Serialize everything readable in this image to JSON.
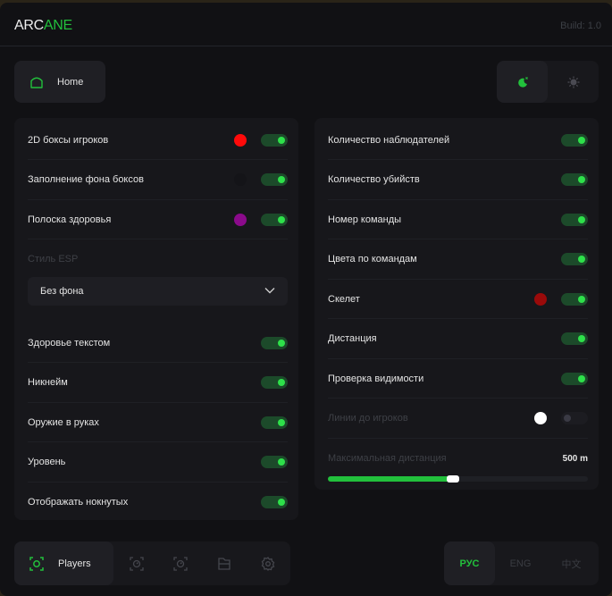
{
  "header": {
    "logo_a": "ARC",
    "logo_b": "ANE",
    "build": "Build: 1.0"
  },
  "top": {
    "home_label": "Home",
    "theme_dark_icon": "moon-icon",
    "theme_light_icon": "sun-icon"
  },
  "left": {
    "rows": [
      {
        "label": "2D боксы игроков",
        "color": "#ff0a0a",
        "on": true
      },
      {
        "label": "Заполнение фона боксов",
        "color": "#141418",
        "on": true
      },
      {
        "label": "Полоска здоровья",
        "color": "#8b0a8b",
        "on": true
      }
    ],
    "style_label": "Стиль ESP",
    "style_value": "Без фона",
    "rows2": [
      {
        "label": "Здоровье текстом",
        "on": true
      },
      {
        "label": "Никнейм",
        "on": true
      },
      {
        "label": "Оружие в руках",
        "on": true
      },
      {
        "label": "Уровень",
        "on": true
      },
      {
        "label": "Отображать нокнутых",
        "on": true
      }
    ]
  },
  "right": {
    "rows": [
      {
        "label": "Количество наблюдателей",
        "on": true
      },
      {
        "label": "Количество убийств",
        "on": true
      },
      {
        "label": "Номер команды",
        "on": true
      },
      {
        "label": "Цвета по командам",
        "on": true
      },
      {
        "label": "Скелет",
        "on": true,
        "color": "#9a0a0a"
      },
      {
        "label": "Дистанция",
        "on": true
      },
      {
        "label": "Проверка видимости",
        "on": true
      },
      {
        "label": "Линии до игроков",
        "on": false,
        "color": "#ffffff",
        "disabled": true
      }
    ],
    "max_distance_label": "Максимальная дистанция",
    "max_distance_value": "500 m",
    "max_distance_percent": 48
  },
  "bottom": {
    "tabs": [
      {
        "label": "Players",
        "icon": "player-scan-icon",
        "active": true
      },
      {
        "icon": "scan-target-icon"
      },
      {
        "icon": "scan-target-icon"
      },
      {
        "icon": "folder-icon"
      },
      {
        "icon": "gear-icon"
      }
    ],
    "languages": [
      {
        "label": "РУС",
        "active": true
      },
      {
        "label": "ENG"
      },
      {
        "label": "中文"
      }
    ]
  },
  "colors": {
    "accent": "#22c03c"
  }
}
